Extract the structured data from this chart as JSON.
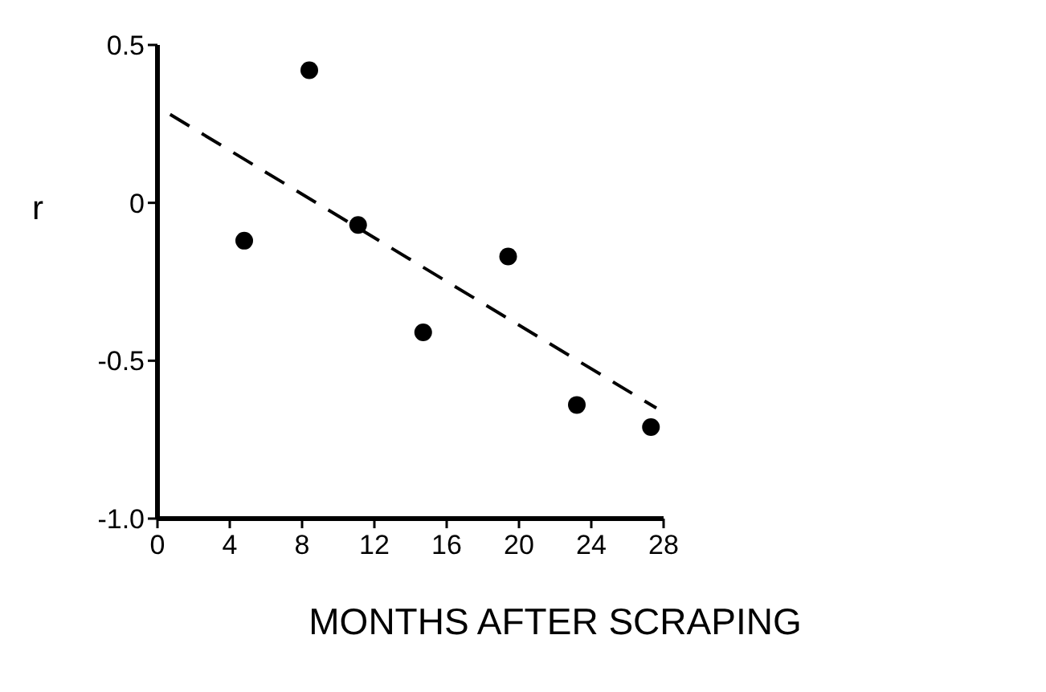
{
  "chart_data": {
    "type": "scatter",
    "xlabel": "MONTHS AFTER SCRAPING",
    "ylabel": "r",
    "xlim": [
      0,
      28
    ],
    "ylim": [
      -1.0,
      0.5
    ],
    "xticks": [
      0,
      4,
      8,
      12,
      16,
      20,
      24,
      28
    ],
    "yticks": [
      {
        "value": -1.0,
        "label": "-1.0"
      },
      {
        "value": -0.5,
        "label": "-0.5"
      },
      0,
      {
        "value": 0.5,
        "label": "0.5"
      }
    ],
    "grid": false,
    "series": [
      {
        "color": "#000000",
        "marker": "circle",
        "x": [
          4.8,
          8.4,
          11.1,
          14.7,
          19.4,
          23.2,
          27.3
        ],
        "values": [
          -0.12,
          0.42,
          -0.07,
          -0.41,
          -0.17,
          -0.64,
          -0.71
        ]
      },
      {
        "type": "line",
        "color": "#000000",
        "line_style": "dashed",
        "marker": "none",
        "x": [
          0.7,
          27.6
        ],
        "values": [
          0.28,
          -0.65
        ]
      }
    ]
  }
}
